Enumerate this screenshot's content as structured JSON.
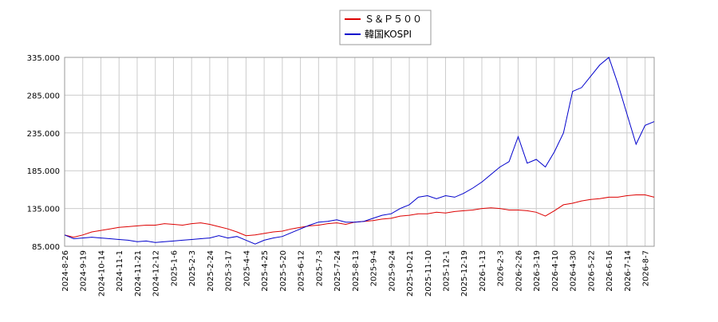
{
  "chart_data": {
    "type": "line",
    "categories": [
      "2024-8-26",
      null,
      "2024-9-19",
      null,
      "2024-10-14",
      null,
      "2024-11-1",
      null,
      "2024-11-21",
      null,
      "2024-12-12",
      null,
      "2025-1-6",
      null,
      "2025-2-3",
      null,
      "2025-2-24",
      null,
      "2025-3-17",
      null,
      "2025-4-4",
      null,
      "2025-4-25",
      null,
      "2025-5-20",
      null,
      "2025-6-12",
      null,
      "2025-7-3",
      null,
      "2025-7-24",
      null,
      "2025-8-13",
      null,
      "2025-9-4",
      null,
      "2025-9-24",
      null,
      "2025-10-21",
      null,
      "2025-11-10",
      null,
      "2025-12-1",
      null,
      "2025-12-19",
      null,
      "2026-1-13",
      null,
      "2026-2-3",
      null,
      "2026-2-26",
      null,
      "2026-3-19",
      null,
      "2026-4-10",
      null,
      "2026-4-30",
      null,
      "2026-5-22",
      null,
      "2026-6-16",
      null,
      "2026-7-14",
      null,
      "2026-8-7",
      null
    ],
    "series": [
      {
        "name": "Ｓ＆Ｐ５００",
        "color": "#dd0000",
        "values": [
          100,
          97,
          100,
          104,
          106,
          108,
          110,
          111,
          112,
          113,
          113,
          115,
          114,
          113,
          115,
          116,
          114,
          111,
          108,
          104,
          99,
          100,
          102,
          104,
          105,
          108,
          110,
          112,
          113,
          115,
          116,
          114,
          117,
          118,
          119,
          121,
          122,
          125,
          126,
          128,
          128,
          130,
          129,
          131,
          132,
          133,
          135,
          136,
          135,
          133,
          133,
          132,
          130,
          125,
          132,
          140,
          142,
          145,
          147,
          148,
          150,
          150,
          152,
          153,
          153,
          150
        ]
      },
      {
        "name": "韓国KOSPI",
        "color": "#0000cc",
        "values": [
          100,
          95,
          96,
          97,
          96,
          95,
          94,
          93,
          91,
          92,
          90,
          91,
          92,
          93,
          94,
          95,
          96,
          99,
          96,
          98,
          93,
          88,
          93,
          96,
          98,
          103,
          108,
          113,
          117,
          118,
          120,
          117,
          117,
          118,
          122,
          126,
          128,
          135,
          140,
          150,
          152,
          148,
          152,
          150,
          155,
          162,
          170,
          180,
          190,
          197,
          230,
          195,
          200,
          190,
          210,
          235,
          290,
          295,
          310,
          325,
          335,
          300,
          260,
          220,
          245,
          250
        ]
      }
    ],
    "ylim": [
      85,
      335
    ],
    "yticks": [
      {
        "value": 85,
        "label": "85.000"
      },
      {
        "value": 135,
        "label": "135.000"
      },
      {
        "value": 185,
        "label": "185.000"
      },
      {
        "value": 235,
        "label": "235.000"
      },
      {
        "value": 285,
        "label": "285.000"
      },
      {
        "value": 335,
        "label": "335.000"
      }
    ],
    "grid": true
  }
}
